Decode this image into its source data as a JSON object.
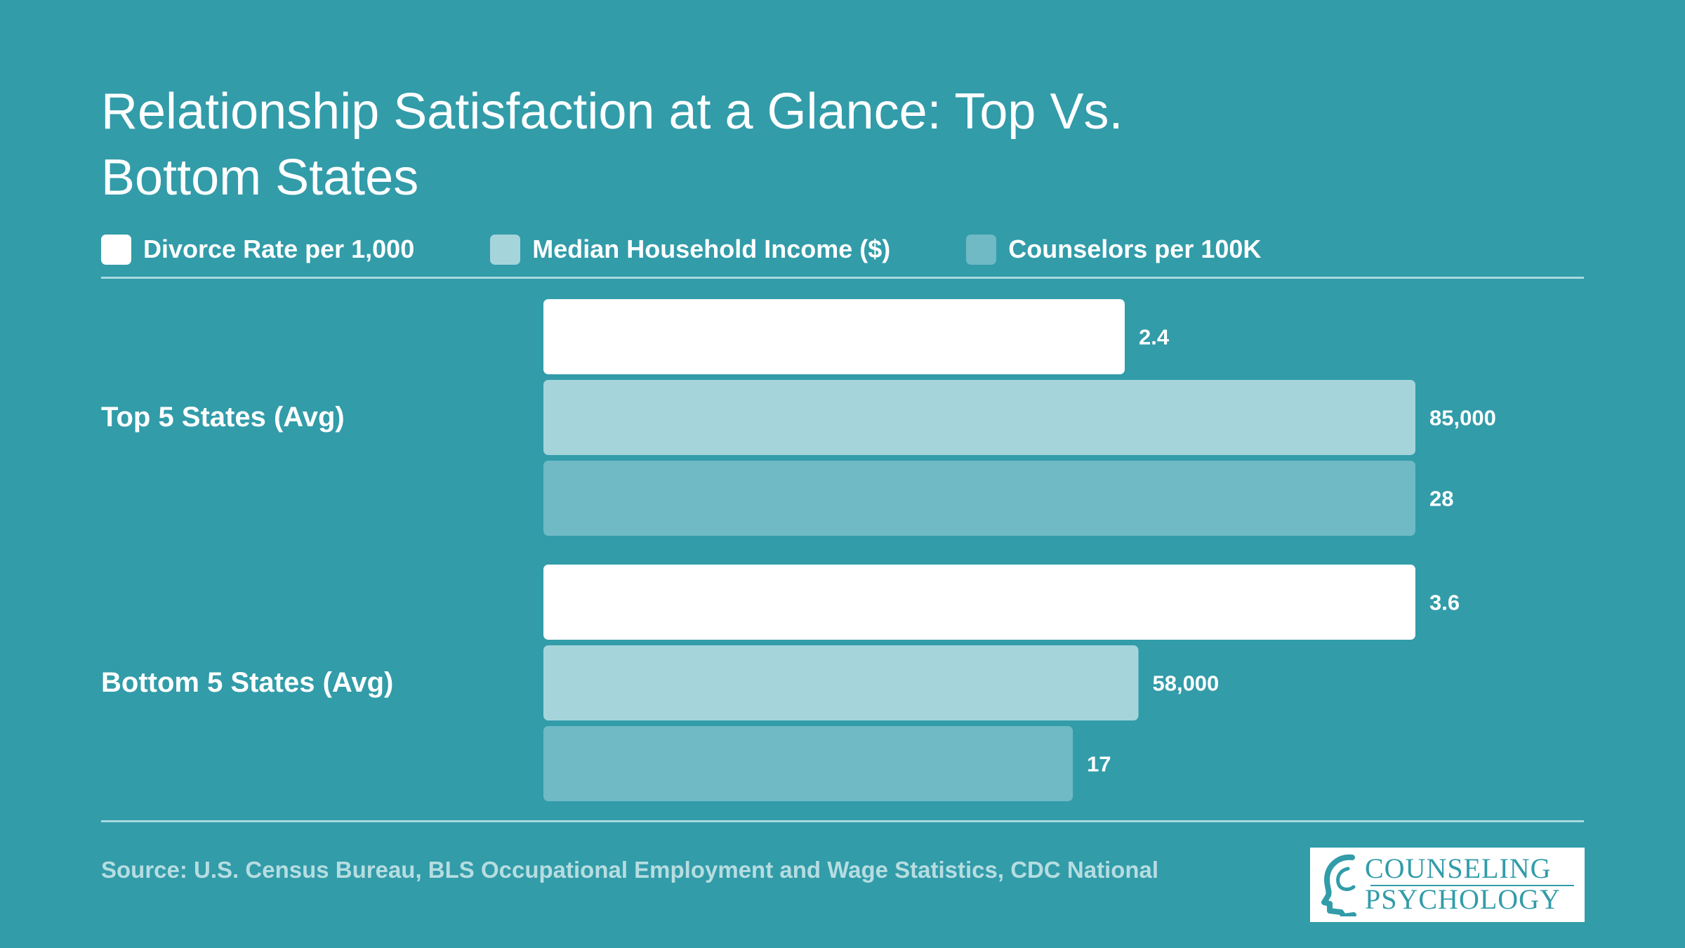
{
  "title": "Relationship Satisfaction at a Glance: Top Vs. Bottom States",
  "legend": [
    {
      "label": "Divorce Rate per 1,000",
      "color": "#ffffff"
    },
    {
      "label": "Median Household Income ($)",
      "color": "#a5d5db"
    },
    {
      "label": "Counselors per 100K",
      "color": "#6fbac5"
    }
  ],
  "chart_data": {
    "type": "bar",
    "orientation": "horizontal",
    "categories": [
      "Top 5 States (Avg)",
      "Bottom 5 States (Avg)"
    ],
    "series": [
      {
        "name": "Divorce Rate per 1,000",
        "values": [
          2.4,
          3.6
        ],
        "labels": [
          "2.4",
          "3.6"
        ],
        "color": "#ffffff"
      },
      {
        "name": "Median Household Income ($)",
        "values": [
          85000,
          58000
        ],
        "labels": [
          "85,000",
          "58,000"
        ],
        "color": "#a5d5db"
      },
      {
        "name": "Counselors per 100K",
        "values": [
          28,
          17
        ],
        "labels": [
          "28",
          "17"
        ],
        "color": "#6fbac5"
      }
    ],
    "title": "Relationship Satisfaction at a Glance: Top Vs. Bottom States",
    "xlabel": "",
    "ylabel": "",
    "grid": false,
    "legend_position": "top"
  },
  "source": "Source: U.S. Census Bureau, BLS Occupational Employment and Wage Statistics, CDC National",
  "logo": {
    "line1": "COUNSELING",
    "line2": "PSYCHOLOGY"
  }
}
